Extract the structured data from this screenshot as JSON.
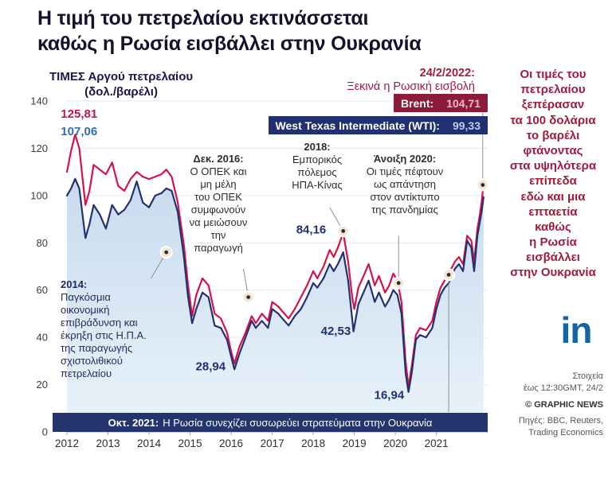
{
  "title": "Η τιμή του πετρελαίου εκτινάσσεται\nκαθώς η Ρωσία εισβάλλει στην Ουκρανία",
  "axis_title": "ΤΙΜΕΣ Αργού πετρελαίου\n(δολ./βαρέλι)",
  "invasion_note": {
    "head": "24/2/2022:",
    "body": "Ξεκινά η Ρωσική εισβολή"
  },
  "legend": [
    {
      "label": "Brent:",
      "value": "104,71",
      "color": "#8e1a3a"
    },
    {
      "label": "West Texas Intermediate (WTI):",
      "value": "99,33",
      "color": "#203070"
    }
  ],
  "callouts": {
    "c2014": {
      "head": "2014:",
      "body": "Παγκόσμια\nοικονομική\nεπιβράδυνση και\nέκρηξη στις Η.Π.Α.\nτης παραγωγής\nσχιστολιθικού\nπετρελαίου"
    },
    "c2016": {
      "head": "Δεκ. 2016:",
      "body": "Ο ΟΠΕΚ και\nμη μέλη\nτου ΟΠΕΚ\nσυμφωνούν\nνα μειώσουν\nτην\nπαραγωγή"
    },
    "c2018": {
      "head": "2018:",
      "body": "Εμπορικός\nπόλεμος\nΗΠΑ-Κίνας"
    },
    "c2020": {
      "head": "Άνοιξη 2020:",
      "body": "Οι τιμές πέφτουν\nως απάντηση\nστον αντίκτυπο\nτης πανδημίας"
    }
  },
  "bottom_band": {
    "head": "Οκτ. 2021:",
    "body": "Η Ρωσία συνεχίζει συσωρεύει στρατεύματα στην Ουκρανία"
  },
  "sidebar": {
    "text": "Οι τιμές του\nπετρελαίου\nξεπέρασαν\nτα 100 δολάρια\nτο βαρέλι\nφτάνοντας\nστα υψηλότερα\nεπίπεδα\nεδώ και μια\nεπταετία\nκαθώς\nη Ρωσία\nεισβάλλει\nστην Ουκρανία"
  },
  "footer": {
    "logo": "in",
    "data_note": "Στοιχεία\nέως 12:30GMT, 24/2",
    "credit": "© GRAPHIC NEWS",
    "sources": "Πηγές: BBC, Reuters,\nTrading Economics"
  },
  "colors": {
    "brent": "#d5134b",
    "wti": "#24306f",
    "accent_red": "#a01b3c",
    "band_navy": "#24356d",
    "area_blue": "#cfe1f2",
    "logo_blue": "#1464a5"
  },
  "chart_data": {
    "type": "line",
    "title": "ΤΙΜΕΣ Αργού πετρελαίου (δολ./βαρέλι)",
    "x_axis": {
      "min": 2012,
      "max": 2022.25,
      "ticks": [
        "2012",
        "2013",
        "2014",
        "2015",
        "2016",
        "2017",
        "2018",
        "2019",
        "2020",
        "2021"
      ]
    },
    "y_axis": {
      "min": 0,
      "max": 140,
      "ticks": [
        0,
        20,
        40,
        60,
        80,
        100,
        120,
        140
      ]
    },
    "series": [
      {
        "name": "Brent",
        "color": "#d5134b",
        "latest": 104.71,
        "points": [
          [
            2012.0,
            110
          ],
          [
            2012.1,
            119
          ],
          [
            2012.2,
            125.8
          ],
          [
            2012.3,
            120
          ],
          [
            2012.45,
            96
          ],
          [
            2012.55,
            102
          ],
          [
            2012.65,
            113
          ],
          [
            2012.8,
            111
          ],
          [
            2012.95,
            109
          ],
          [
            2013.1,
            114
          ],
          [
            2013.25,
            104
          ],
          [
            2013.4,
            102
          ],
          [
            2013.55,
            107
          ],
          [
            2013.7,
            110
          ],
          [
            2013.85,
            108
          ],
          [
            2014.0,
            107
          ],
          [
            2014.15,
            108
          ],
          [
            2014.3,
            109
          ],
          [
            2014.42,
            111
          ],
          [
            2014.55,
            108
          ],
          [
            2014.7,
            97
          ],
          [
            2014.85,
            79
          ],
          [
            2014.95,
            62
          ],
          [
            2015.05,
            49
          ],
          [
            2015.15,
            58
          ],
          [
            2015.3,
            65
          ],
          [
            2015.45,
            62
          ],
          [
            2015.6,
            50
          ],
          [
            2015.75,
            48
          ],
          [
            2015.9,
            42
          ],
          [
            2016.0,
            34
          ],
          [
            2016.08,
            28.9
          ],
          [
            2016.2,
            36
          ],
          [
            2016.35,
            42
          ],
          [
            2016.5,
            49
          ],
          [
            2016.6,
            46
          ],
          [
            2016.75,
            50
          ],
          [
            2016.9,
            47
          ],
          [
            2017.0,
            55
          ],
          [
            2017.15,
            53
          ],
          [
            2017.25,
            51
          ],
          [
            2017.4,
            48
          ],
          [
            2017.55,
            52
          ],
          [
            2017.7,
            57
          ],
          [
            2017.85,
            62
          ],
          [
            2018.0,
            68
          ],
          [
            2018.1,
            65
          ],
          [
            2018.25,
            70
          ],
          [
            2018.4,
            77
          ],
          [
            2018.5,
            74
          ],
          [
            2018.6,
            78
          ],
          [
            2018.73,
            84.2
          ],
          [
            2018.85,
            72
          ],
          [
            2018.95,
            57
          ],
          [
            2019.0,
            52
          ],
          [
            2019.1,
            61
          ],
          [
            2019.25,
            67
          ],
          [
            2019.35,
            71
          ],
          [
            2019.5,
            62
          ],
          [
            2019.6,
            66
          ],
          [
            2019.75,
            59
          ],
          [
            2019.85,
            62
          ],
          [
            2019.95,
            67
          ],
          [
            2020.05,
            64
          ],
          [
            2020.15,
            55
          ],
          [
            2020.25,
            30
          ],
          [
            2020.32,
            19
          ],
          [
            2020.4,
            28
          ],
          [
            2020.5,
            41
          ],
          [
            2020.6,
            44
          ],
          [
            2020.75,
            43
          ],
          [
            2020.9,
            47
          ],
          [
            2021.0,
            55
          ],
          [
            2021.1,
            61
          ],
          [
            2021.2,
            64
          ],
          [
            2021.3,
            67
          ],
          [
            2021.45,
            72
          ],
          [
            2021.55,
            74
          ],
          [
            2021.65,
            71
          ],
          [
            2021.75,
            83
          ],
          [
            2021.85,
            81
          ],
          [
            2021.92,
            72
          ],
          [
            2022.0,
            86
          ],
          [
            2022.05,
            91
          ],
          [
            2022.1,
            97
          ],
          [
            2022.15,
            104.7
          ]
        ]
      },
      {
        "name": "West Texas Intermediate (WTI)",
        "color": "#24306f",
        "latest": 99.33,
        "fill": true,
        "fill_color": "#cfe1f2",
        "points": [
          [
            2012.0,
            100
          ],
          [
            2012.1,
            103
          ],
          [
            2012.2,
            107.1
          ],
          [
            2012.3,
            103
          ],
          [
            2012.45,
            82
          ],
          [
            2012.55,
            88
          ],
          [
            2012.65,
            96
          ],
          [
            2012.8,
            92
          ],
          [
            2012.95,
            86
          ],
          [
            2013.1,
            96
          ],
          [
            2013.25,
            92
          ],
          [
            2013.4,
            94
          ],
          [
            2013.55,
            98
          ],
          [
            2013.7,
            106
          ],
          [
            2013.85,
            97
          ],
          [
            2014.0,
            95
          ],
          [
            2014.15,
            100
          ],
          [
            2014.3,
            101
          ],
          [
            2014.42,
            103
          ],
          [
            2014.55,
            102
          ],
          [
            2014.7,
            93
          ],
          [
            2014.85,
            74
          ],
          [
            2014.95,
            57
          ],
          [
            2015.05,
            46
          ],
          [
            2015.15,
            52
          ],
          [
            2015.3,
            59
          ],
          [
            2015.45,
            57
          ],
          [
            2015.6,
            45
          ],
          [
            2015.75,
            44
          ],
          [
            2015.9,
            39
          ],
          [
            2016.0,
            32
          ],
          [
            2016.08,
            26.5
          ],
          [
            2016.2,
            33
          ],
          [
            2016.35,
            40
          ],
          [
            2016.5,
            47
          ],
          [
            2016.6,
            44
          ],
          [
            2016.75,
            47
          ],
          [
            2016.9,
            44
          ],
          [
            2017.0,
            52
          ],
          [
            2017.15,
            50
          ],
          [
            2017.25,
            48
          ],
          [
            2017.4,
            45
          ],
          [
            2017.55,
            49
          ],
          [
            2017.7,
            52
          ],
          [
            2017.85,
            57
          ],
          [
            2018.0,
            63
          ],
          [
            2018.1,
            61
          ],
          [
            2018.25,
            65
          ],
          [
            2018.4,
            71
          ],
          [
            2018.5,
            68
          ],
          [
            2018.6,
            71
          ],
          [
            2018.73,
            76
          ],
          [
            2018.85,
            64
          ],
          [
            2018.98,
            42.5
          ],
          [
            2019.1,
            54
          ],
          [
            2019.25,
            60
          ],
          [
            2019.35,
            64
          ],
          [
            2019.5,
            55
          ],
          [
            2019.6,
            59
          ],
          [
            2019.75,
            53
          ],
          [
            2019.85,
            56
          ],
          [
            2019.95,
            60
          ],
          [
            2020.05,
            58
          ],
          [
            2020.15,
            50
          ],
          [
            2020.25,
            25
          ],
          [
            2020.32,
            16.9
          ],
          [
            2020.4,
            25
          ],
          [
            2020.5,
            39
          ],
          [
            2020.6,
            41
          ],
          [
            2020.75,
            40
          ],
          [
            2020.9,
            44
          ],
          [
            2021.0,
            52
          ],
          [
            2021.1,
            58
          ],
          [
            2021.2,
            61
          ],
          [
            2021.3,
            63
          ],
          [
            2021.45,
            69
          ],
          [
            2021.55,
            71
          ],
          [
            2021.65,
            68
          ],
          [
            2021.75,
            81
          ],
          [
            2021.85,
            78
          ],
          [
            2021.92,
            68
          ],
          [
            2022.0,
            83
          ],
          [
            2022.05,
            88
          ],
          [
            2022.1,
            93
          ],
          [
            2022.15,
            99.3
          ]
        ]
      }
    ],
    "markers": [
      {
        "name": "oil-crash-2014",
        "x": 2014.42,
        "y": 76,
        "leader": [
          2014.05,
          65
        ]
      },
      {
        "name": "opec-cut-2016",
        "x": 2016.42,
        "y": 57,
        "leader": [
          2016.3,
          69
        ]
      },
      {
        "name": "trade-war-peak-2018",
        "x": 2018.73,
        "y": 85,
        "leader": [
          2018.4,
          95
        ]
      },
      {
        "name": "pandemic-2020",
        "x": 2020.08,
        "y": 63,
        "leader": [
          2020.08,
          83
        ]
      },
      {
        "name": "troop-buildup-oct-2021",
        "x": 2021.3,
        "y": 66.5,
        "leader": [
          2021.3,
          8.5
        ]
      },
      {
        "name": "invasion-24-2-2022",
        "x": 2022.13,
        "y": 104.5,
        "leader": [
          2022.13,
          137
        ]
      }
    ],
    "point_labels": [
      {
        "text": "125,81",
        "x": 2011.85,
        "y": 133,
        "anchor": "start",
        "color": "#c11747"
      },
      {
        "text": "107,06",
        "x": 2011.85,
        "y": 125.5,
        "anchor": "start",
        "color": "#2f6cb3"
      },
      {
        "text": "84,16",
        "x": 2017.95,
        "y": 84,
        "anchor": "middle",
        "color": "#203070"
      },
      {
        "text": "42,53",
        "x": 2018.55,
        "y": 41,
        "anchor": "middle",
        "color": "#203070"
      },
      {
        "text": "28,94",
        "x": 2015.5,
        "y": 26,
        "anchor": "middle",
        "color": "#203070"
      },
      {
        "text": "16,94",
        "x": 2019.85,
        "y": 14,
        "anchor": "middle",
        "color": "#203070"
      }
    ]
  }
}
